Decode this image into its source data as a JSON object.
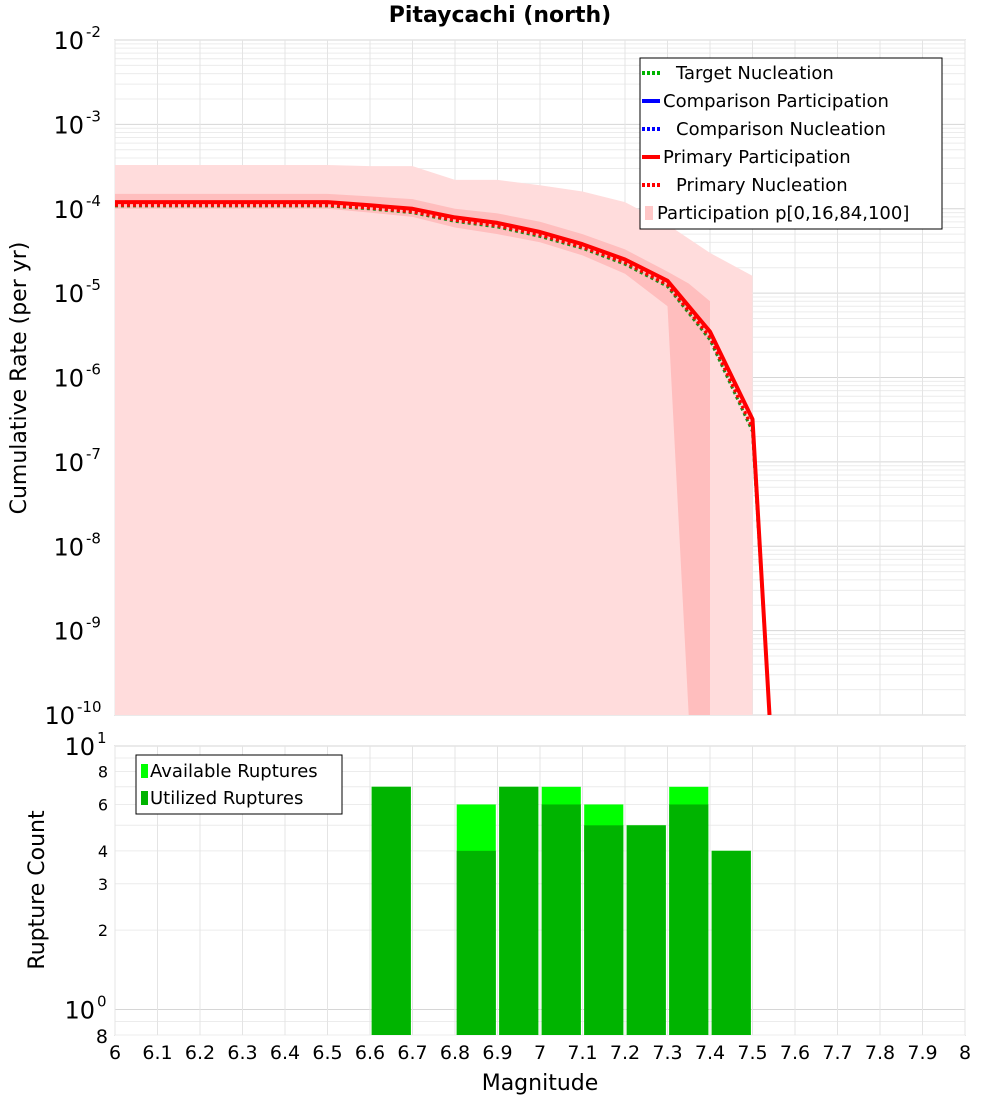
{
  "chart_data": [
    {
      "type": "line",
      "title": "Pitaycachi (north)",
      "xlabel": "",
      "ylabel": "Cumulative Rate (per yr)",
      "xlim": [
        6,
        8
      ],
      "ylim": [
        1e-10,
        0.01
      ],
      "yscale": "log",
      "grid": true,
      "legend_position": "top-right",
      "y_tick_labels": [
        {
          "base": "10",
          "exp": "-2"
        },
        {
          "base": "10",
          "exp": "-3"
        },
        {
          "base": "10",
          "exp": "-4"
        },
        {
          "base": "10",
          "exp": "-5"
        },
        {
          "base": "10",
          "exp": "-6"
        },
        {
          "base": "10",
          "exp": "-7"
        },
        {
          "base": "10",
          "exp": "-8"
        },
        {
          "base": "10",
          "exp": "-9"
        },
        {
          "base": "10",
          "exp": "-10"
        }
      ],
      "legend": [
        {
          "label": "Target Nucleation",
          "color": "#00b400",
          "style": "dotted"
        },
        {
          "label": "Comparison Participation",
          "color": "#0000ff",
          "style": "solid"
        },
        {
          "label": "Comparison Nucleation",
          "color": "#0000ff",
          "style": "dotted"
        },
        {
          "label": "Primary Participation",
          "color": "#ff0000",
          "style": "solid"
        },
        {
          "label": "Primary Nucleation",
          "color": "#ff0000",
          "style": "dotted"
        },
        {
          "label": "Participation p[0,16,84,100]",
          "color": "#ffc8c8",
          "style": "band"
        }
      ],
      "series": [
        {
          "name": "Primary Participation",
          "x": [
            6.0,
            6.1,
            6.2,
            6.3,
            6.4,
            6.5,
            6.6,
            6.7,
            6.8,
            6.9,
            7.0,
            7.1,
            7.2,
            7.3,
            7.4,
            7.5,
            7.54
          ],
          "values": [
            0.00012,
            0.00012,
            0.00012,
            0.00012,
            0.00012,
            0.00012,
            0.00011,
            0.0001,
            7.9e-05,
            6.8e-05,
            5.3e-05,
            3.8e-05,
            2.5e-05,
            1.4e-05,
            3.5e-06,
            3.2e-07,
            1e-10
          ]
        },
        {
          "name": "Primary Nucleation",
          "x": [
            6.0,
            6.1,
            6.2,
            6.3,
            6.4,
            6.5,
            6.6,
            6.7,
            6.8,
            6.9,
            7.0,
            7.1,
            7.2,
            7.3,
            7.4,
            7.5,
            7.54
          ],
          "values": [
            0.00011,
            0.00011,
            0.00011,
            0.00011,
            0.00011,
            0.00011,
            0.000102,
            9.2e-05,
            7.3e-05,
            6.3e-05,
            4.9e-05,
            3.5e-05,
            2.3e-05,
            1.25e-05,
            3e-06,
            2.5e-07,
            1e-10
          ]
        },
        {
          "name": "Target Nucleation",
          "x": [
            6.0,
            6.1,
            6.2,
            6.3,
            6.4,
            6.5,
            6.6,
            6.7,
            6.8,
            6.9,
            7.0,
            7.1,
            7.2,
            7.3,
            7.4,
            7.5,
            7.54
          ],
          "values": [
            0.000108,
            0.000108,
            0.000108,
            0.000108,
            0.000108,
            0.000108,
            0.0001,
            9e-05,
            7.1e-05,
            6.1e-05,
            4.7e-05,
            3.4e-05,
            2.2e-05,
            1.2e-05,
            2.8e-06,
            2.3e-07,
            1e-10
          ]
        }
      ],
      "bands": [
        {
          "name": "p0-p100",
          "color": "#ffdcdc",
          "x": [
            6.0,
            6.1,
            6.2,
            6.3,
            6.4,
            6.5,
            6.6,
            6.7,
            6.8,
            6.9,
            7.0,
            7.1,
            7.2,
            7.3,
            7.4,
            7.5
          ],
          "lower": [
            1e-10,
            1e-10,
            1e-10,
            1e-10,
            1e-10,
            1e-10,
            1e-10,
            1e-10,
            1e-10,
            1e-10,
            1e-10,
            1e-10,
            1e-10,
            1e-10,
            1e-10,
            1e-10
          ],
          "upper": [
            0.00033,
            0.00033,
            0.00033,
            0.00033,
            0.00033,
            0.00033,
            0.00032,
            0.00032,
            0.00022,
            0.00022,
            0.00019,
            0.00016,
            0.00012,
            6.5e-05,
            3e-05,
            1.6e-05
          ]
        },
        {
          "name": "p16-p84",
          "color": "#ffbebe",
          "x": [
            6.0,
            6.1,
            6.2,
            6.3,
            6.4,
            6.5,
            6.6,
            6.7,
            6.8,
            6.9,
            7.0,
            7.1,
            7.2,
            7.3,
            7.35,
            7.4
          ],
          "lower": [
            0.0001,
            0.0001,
            0.0001,
            0.0001,
            0.0001,
            0.0001,
            9e-05,
            8e-05,
            6e-05,
            5e-05,
            4e-05,
            2.8e-05,
            1.7e-05,
            7e-06,
            1e-10,
            1e-10
          ],
          "upper": [
            0.00015,
            0.00015,
            0.00015,
            0.00015,
            0.00015,
            0.00015,
            0.00014,
            0.00013,
            0.0001,
            8.8e-05,
            7e-05,
            5e-05,
            3.3e-05,
            1.8e-05,
            1.3e-05,
            8e-06
          ]
        }
      ]
    },
    {
      "type": "bar",
      "title": "",
      "xlabel": "Magnitude",
      "ylabel": "Rupture Count",
      "xlim": [
        6,
        8
      ],
      "ylim": [
        0.8,
        10
      ],
      "yscale": "log",
      "grid": true,
      "legend_position": "top-left",
      "x_tick_labels": [
        "6",
        "6.1",
        "6.2",
        "6.3",
        "6.4",
        "6.5",
        "6.6",
        "6.7",
        "6.8",
        "6.9",
        "7",
        "7.1",
        "7.2",
        "7.3",
        "7.4",
        "7.5",
        "7.6",
        "7.7",
        "7.8",
        "7.9",
        "8"
      ],
      "y_tick_labels": {
        "top": {
          "base": "10",
          "exp": "1"
        },
        "mid": {
          "base": "10",
          "exp": "0"
        },
        "bottom": "8",
        "minor": [
          "8",
          "6",
          "4",
          "3",
          "2"
        ]
      },
      "legend": [
        {
          "label": "Available Ruptures",
          "color": "#00ff00"
        },
        {
          "label": "Utilized Ruptures",
          "color": "#00b400"
        }
      ],
      "categories": [
        "6.65",
        "6.85",
        "6.95",
        "7.05",
        "7.15",
        "7.25",
        "7.35",
        "7.45"
      ],
      "series": [
        {
          "name": "Available Ruptures",
          "values": [
            7,
            6,
            7,
            7,
            6,
            5,
            7,
            4
          ]
        },
        {
          "name": "Utilized Ruptures",
          "values": [
            7,
            4,
            7,
            6,
            5,
            5,
            6,
            4
          ]
        }
      ]
    }
  ]
}
